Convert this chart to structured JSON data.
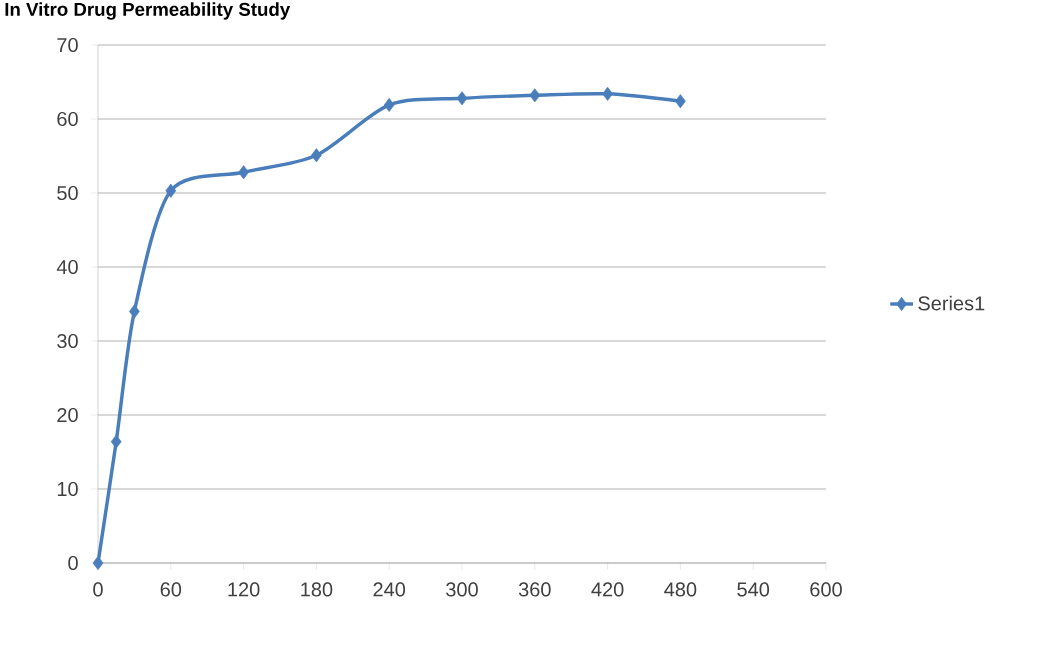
{
  "chart_data": {
    "type": "line",
    "title": "In Vitro Drug Permeability Study",
    "x": [
      0,
      15,
      30,
      60,
      120,
      180,
      240,
      300,
      360,
      420,
      480
    ],
    "series": [
      {
        "name": "Series1",
        "color": "#4a7ebb",
        "values": [
          0,
          16.4,
          34.0,
          50.3,
          52.8,
          55.1,
          61.9,
          62.8,
          63.2,
          63.4,
          62.4
        ]
      }
    ],
    "xlim": [
      0,
      600
    ],
    "xticks": [
      0,
      60,
      120,
      180,
      240,
      300,
      360,
      420,
      480,
      540,
      600
    ],
    "ylim": [
      0,
      70
    ],
    "yticks": [
      0,
      10,
      20,
      30,
      40,
      50,
      60,
      70
    ],
    "grid": "y",
    "legend": "right",
    "marker": "diamond",
    "line_style": "solid"
  }
}
